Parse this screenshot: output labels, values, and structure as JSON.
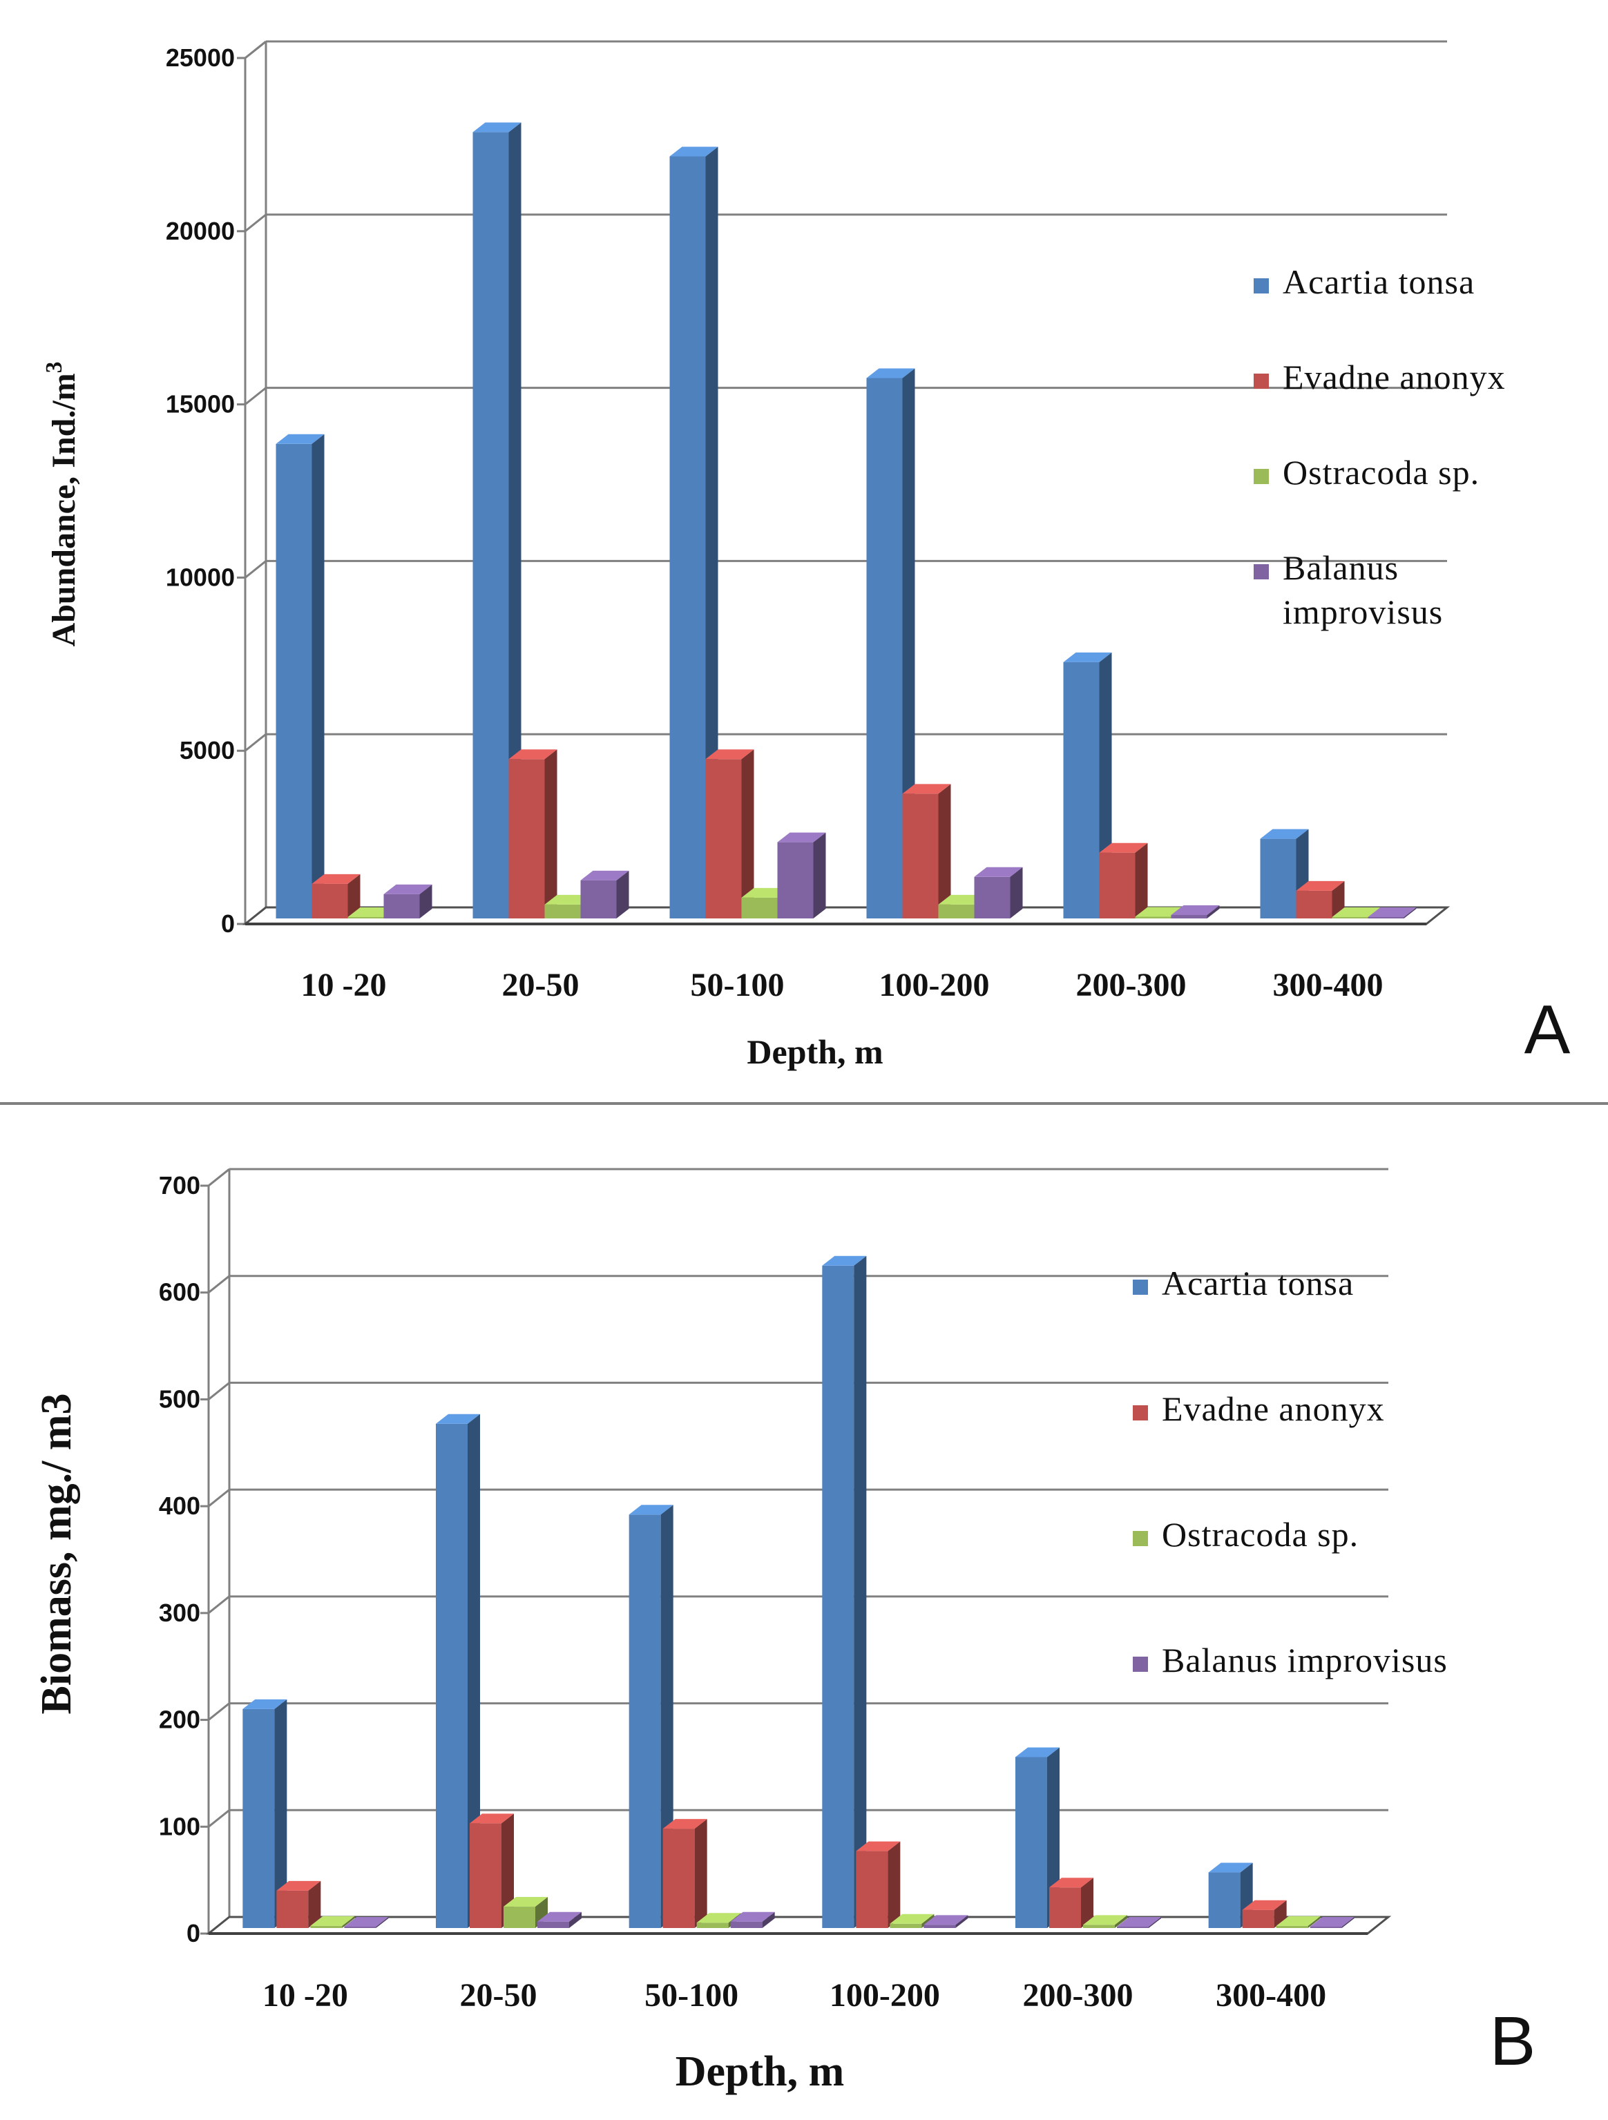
{
  "figure": {
    "divider": true
  },
  "chart_data": [
    {
      "type": "bar",
      "panel_label": "A",
      "title": "",
      "xlabel": "Depth, m",
      "ylabel_main": "Abundance, Ind./m",
      "ylabel_sup": "3",
      "ylim": [
        0,
        25000
      ],
      "yticks": [
        "0",
        "5000",
        "10000",
        "15000",
        "20000",
        "25000"
      ],
      "ytick_values": [
        0,
        5000,
        10000,
        15000,
        20000,
        25000
      ],
      "categories": [
        "10 -20",
        "20-50",
        "50-100",
        "100-200",
        "200-300",
        "300-400"
      ],
      "series": [
        {
          "name": "Acartia tonsa",
          "color": "#4f81bd",
          "values": [
            13700,
            22700,
            22000,
            15600,
            7400,
            2300
          ]
        },
        {
          "name": "Evadne anonyx",
          "color": "#c0504d",
          "values": [
            1000,
            4600,
            4600,
            3600,
            1900,
            800
          ]
        },
        {
          "name": "Ostracoda sp.",
          "color": "#9bbb59",
          "values": [
            0,
            400,
            600,
            400,
            50,
            0
          ]
        },
        {
          "name": "Balanus improvisus",
          "color": "#8064a2",
          "values": [
            700,
            1100,
            2200,
            1200,
            100,
            0
          ]
        }
      ],
      "legend_lines": [
        [
          "Acartia tonsa"
        ],
        [
          "Evadne anonyx"
        ],
        [
          "Ostracoda sp."
        ],
        [
          "Balanus",
          "improvisus"
        ]
      ],
      "legend_position": "right"
    },
    {
      "type": "bar",
      "panel_label": "B",
      "title": "",
      "xlabel": "Depth, m",
      "ylabel_main": "Biomass, mg./ m3",
      "ylabel_sup": "",
      "ylim": [
        0,
        700
      ],
      "yticks": [
        "0",
        "100",
        "200",
        "300",
        "400",
        "500",
        "600",
        "700"
      ],
      "ytick_values": [
        0,
        100,
        200,
        300,
        400,
        500,
        600,
        700
      ],
      "categories": [
        "10 -20",
        "20-50",
        "50-100",
        "100-200",
        "200-300",
        "300-400"
      ],
      "series": [
        {
          "name": "Acartia tonsa",
          "color": "#4f81bd",
          "values": [
            205,
            472,
            387,
            620,
            160,
            52
          ]
        },
        {
          "name": "Evadne anonyx",
          "color": "#c0504d",
          "values": [
            35,
            98,
            93,
            72,
            38,
            17
          ]
        },
        {
          "name": "Ostracoda sp.",
          "color": "#9bbb59",
          "values": [
            2,
            20,
            5,
            4,
            3,
            2
          ]
        },
        {
          "name": "Balanus improvisus",
          "color": "#8064a2",
          "values": [
            1,
            6,
            6,
            3,
            1,
            1
          ]
        }
      ],
      "legend_lines": [
        [
          "Acartia tonsa"
        ],
        [
          "Evadne anonyx"
        ],
        [
          "Ostracoda sp."
        ],
        [
          "Balanus improvisus"
        ]
      ],
      "legend_position": "right"
    }
  ]
}
